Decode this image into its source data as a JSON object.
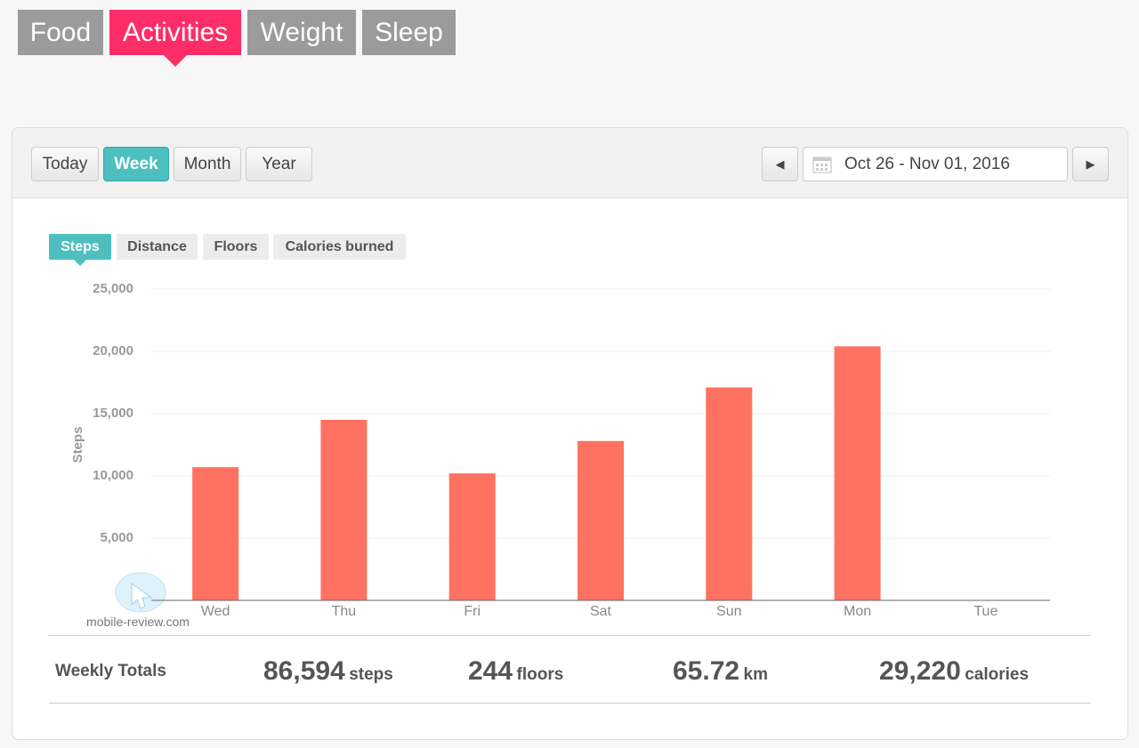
{
  "top_tabs": [
    "Food",
    "Activities",
    "Weight",
    "Sleep"
  ],
  "period_buttons": [
    "Today",
    "Week",
    "Month",
    "Year"
  ],
  "date_range": "Oct 26 - Nov 01, 2016",
  "metric_tabs": [
    "Steps",
    "Distance",
    "Floors",
    "Calories burned"
  ],
  "watermark": "mobile-review.com",
  "chart_data": {
    "type": "bar",
    "y_label": "Steps",
    "categories": [
      "Wed",
      "Thu",
      "Fri",
      "Sat",
      "Sun",
      "Mon",
      "Tue"
    ],
    "values": [
      10700,
      14500,
      10200,
      12800,
      17100,
      20400,
      0
    ],
    "color": "#ff7262",
    "ylim": [
      0,
      25000
    ],
    "yticks": [
      {
        "value": 5000,
        "label": "5,000"
      },
      {
        "value": 10000,
        "label": "10,000"
      },
      {
        "value": 15000,
        "label": "15,000"
      },
      {
        "value": 20000,
        "label": "20,000"
      },
      {
        "value": 25000,
        "label": "25,000"
      }
    ],
    "grid": true
  },
  "totals": {
    "label": "Weekly Totals",
    "items": [
      {
        "value": "86,594",
        "unit": "steps"
      },
      {
        "value": "244",
        "unit": "floors"
      },
      {
        "value": "65.72",
        "unit": "km"
      },
      {
        "value": "29,220",
        "unit": "calories"
      }
    ]
  }
}
